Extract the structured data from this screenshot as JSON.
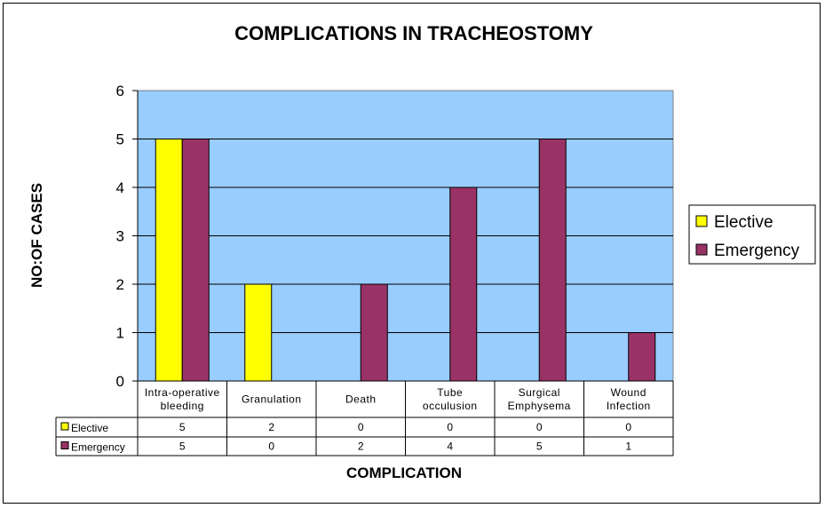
{
  "chart_data": {
    "type": "bar",
    "title": "COMPLICATIONS IN TRACHEOSTOMY",
    "xlabel": "COMPLICATION",
    "ylabel": "NO:OF CASES",
    "categories": [
      [
        "Intra-operative",
        "bleeding"
      ],
      [
        "Granulation"
      ],
      [
        "Death"
      ],
      [
        "Tube",
        "occulusion"
      ],
      [
        "Surgical",
        "Emphysema"
      ],
      [
        "Wound",
        "Infection"
      ]
    ],
    "series": [
      {
        "name": "Elective",
        "color": "#FFFF00",
        "values": [
          5,
          2,
          0,
          0,
          0,
          0
        ]
      },
      {
        "name": "Emergency",
        "color": "#993366",
        "values": [
          5,
          0,
          2,
          4,
          5,
          1
        ]
      }
    ],
    "ylim": [
      0,
      6
    ],
    "yticks": [
      0,
      1,
      2,
      3,
      4,
      5,
      6
    ],
    "plot_background": "#99CCFF",
    "grid": true,
    "legend_position": "right",
    "data_table": true
  }
}
